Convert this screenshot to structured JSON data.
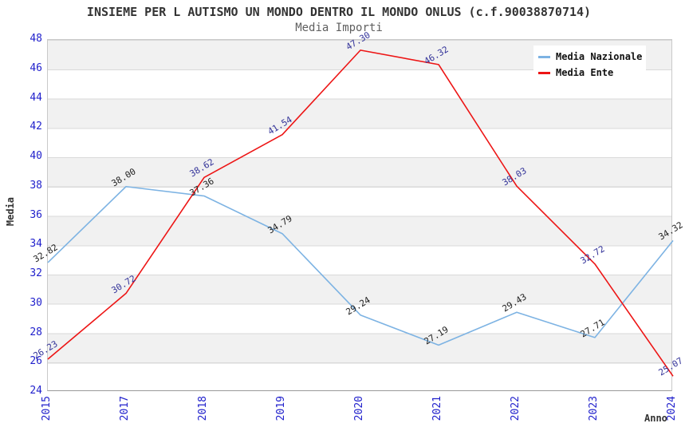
{
  "header": {
    "title": "INSIEME PER L AUTISMO UN MONDO DENTRO IL MONDO ONLUS (c.f.90038870714)",
    "subtitle": "Media Importi"
  },
  "chart_data": {
    "type": "line",
    "title": "INSIEME PER L AUTISMO UN MONDO DENTRO IL MONDO ONLUS (c.f.90038870714)",
    "subtitle": "Media Importi",
    "xlabel": "Anno",
    "ylabel": "Media",
    "categories": [
      "2015",
      "2017",
      "2018",
      "2019",
      "2020",
      "2021",
      "2022",
      "2023",
      "2024"
    ],
    "series": [
      {
        "name": "Media Nazionale",
        "color": "#7db3e3",
        "label_color": "#1f1f1f",
        "values": [
          32.82,
          38.0,
          37.36,
          34.79,
          29.24,
          27.19,
          29.43,
          27.71,
          34.32
        ]
      },
      {
        "name": "Media Ente",
        "color": "#ed1515",
        "label_color": "#333399",
        "values": [
          26.23,
          30.72,
          38.62,
          41.54,
          47.3,
          46.32,
          38.03,
          32.72,
          25.07
        ]
      }
    ],
    "ylim": [
      24,
      48
    ],
    "yticks": [
      24,
      26,
      28,
      30,
      32,
      34,
      36,
      38,
      40,
      42,
      44,
      46,
      48
    ],
    "grid": "horizontal-bands",
    "legend_position": "top-right",
    "tick_color": "#2121cc",
    "band_color": "#f1f1f1",
    "data_labels": true
  }
}
